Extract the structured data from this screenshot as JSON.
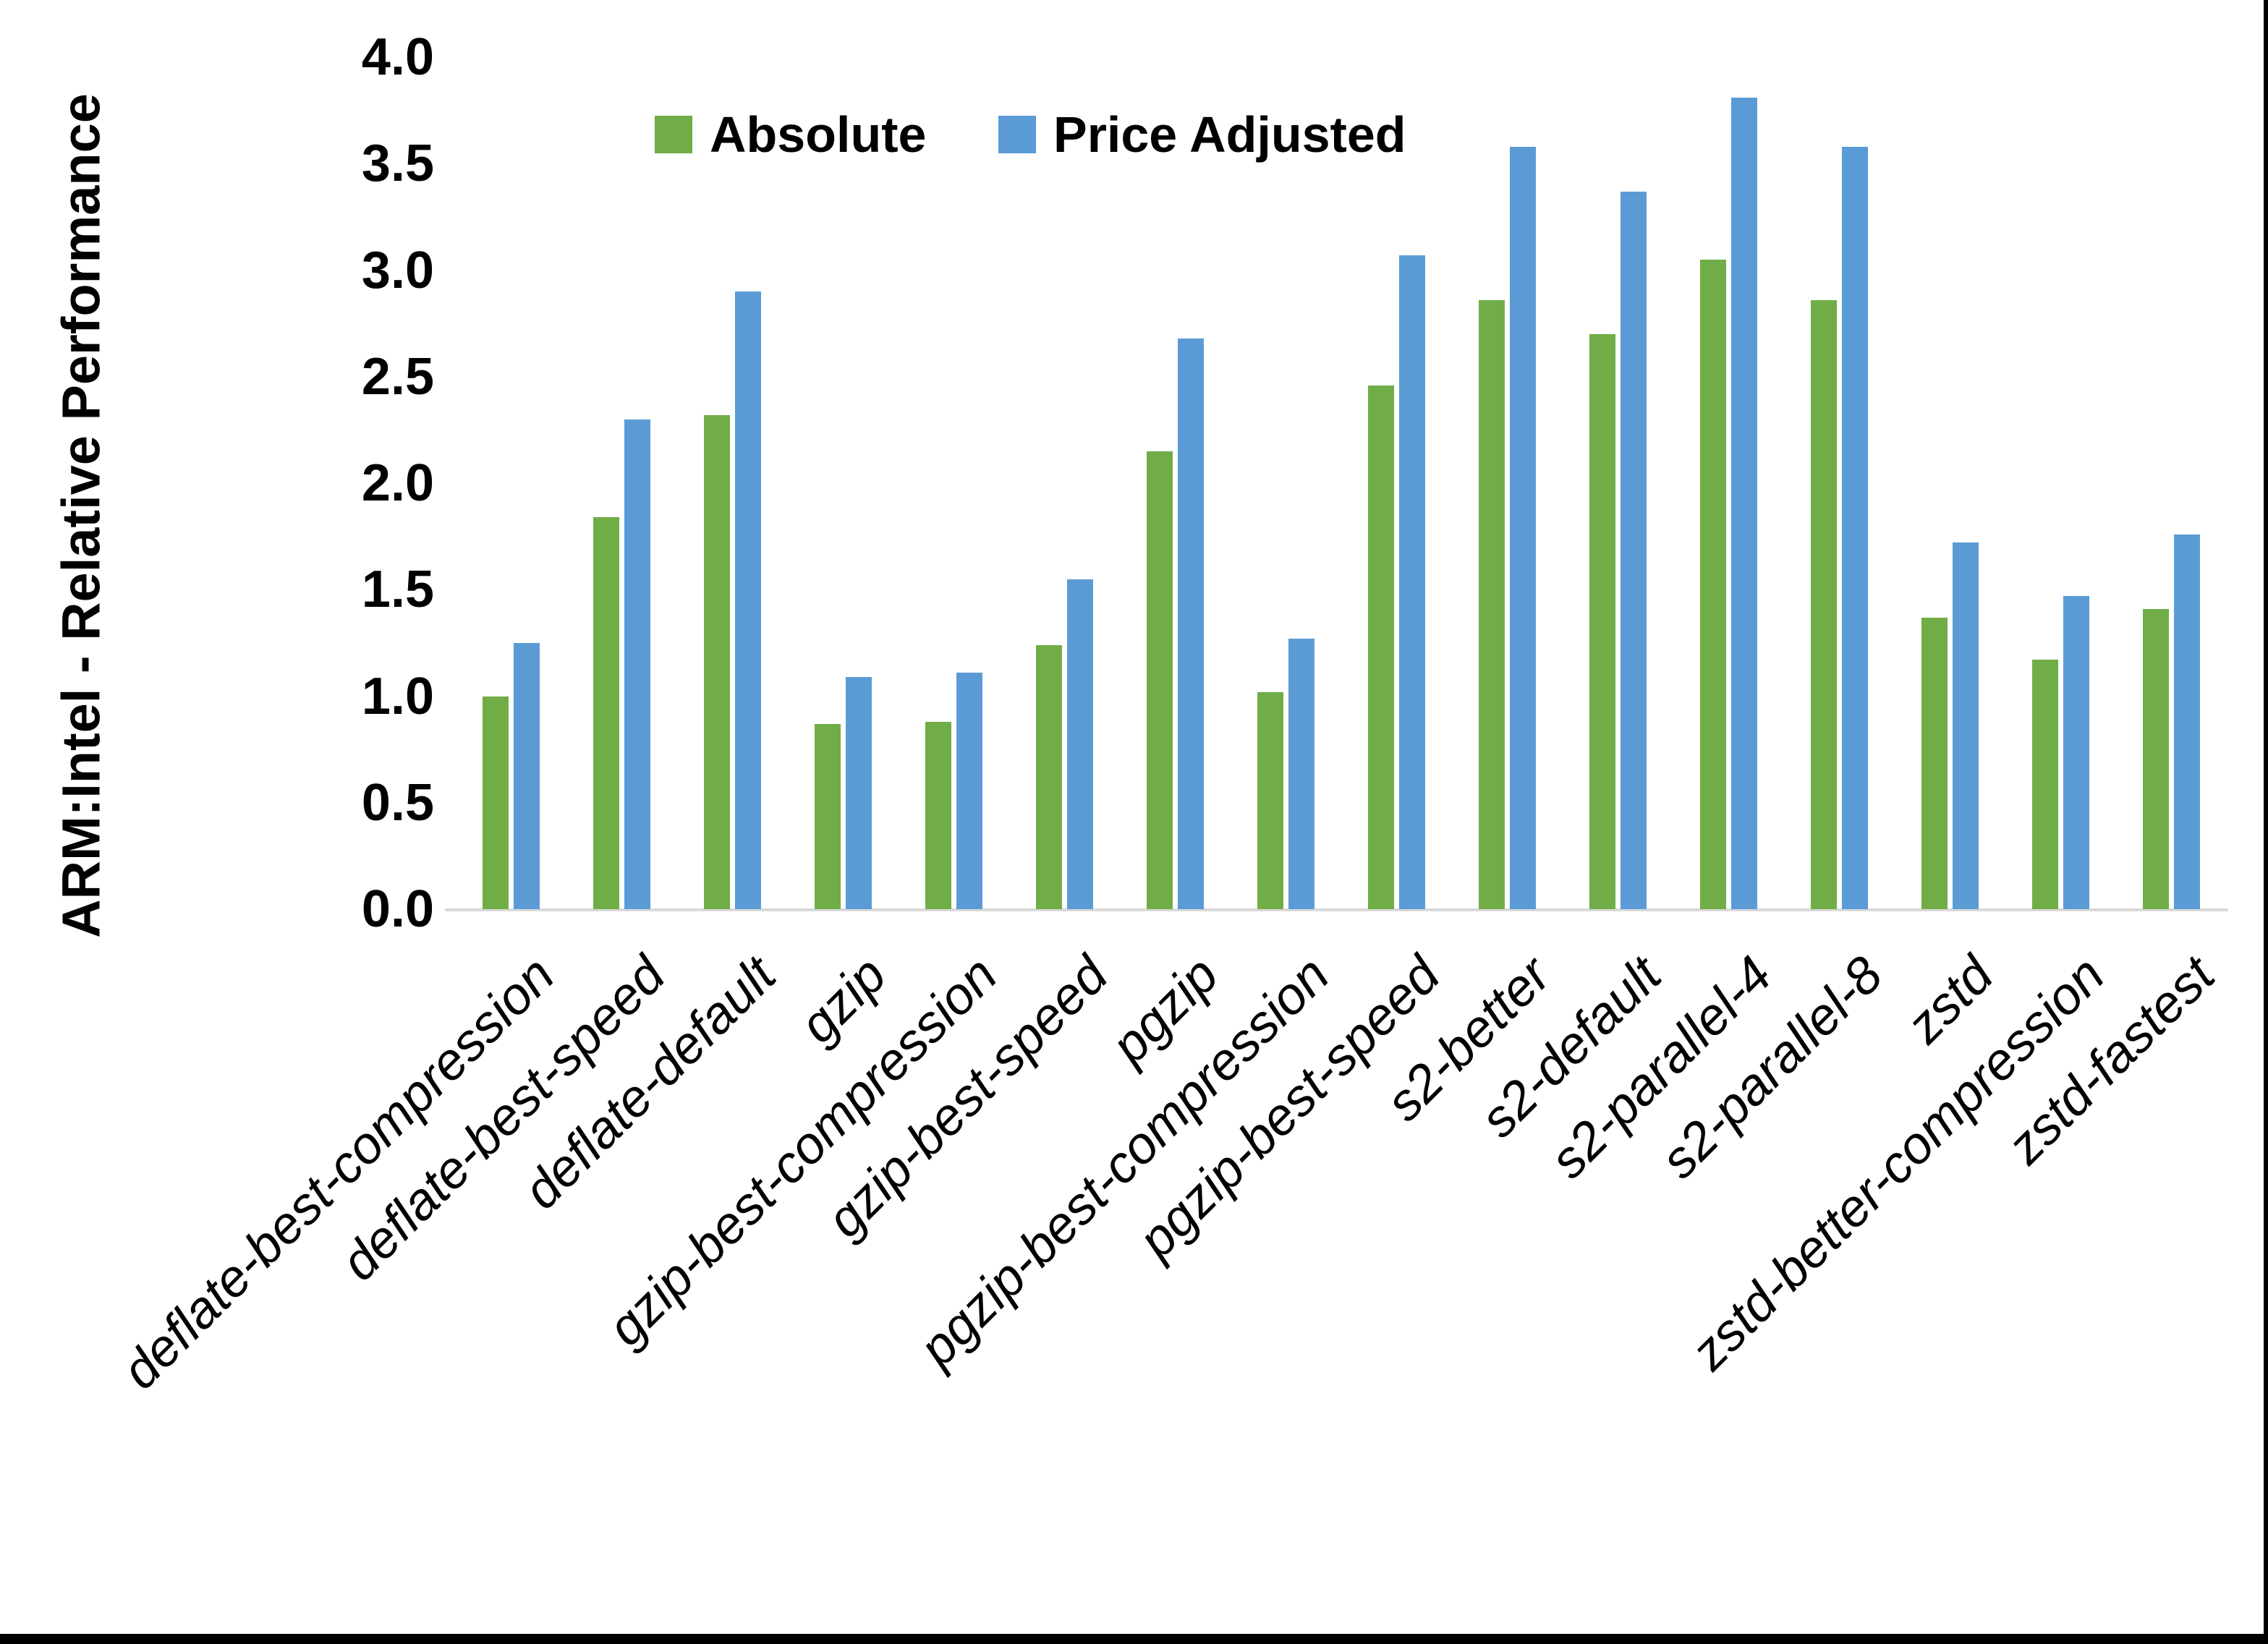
{
  "chart_data": {
    "type": "bar",
    "title": "",
    "ylabel": "ARM:Intel - Relative Performance",
    "xlabel": "",
    "ylim": [
      0.0,
      4.0
    ],
    "ytick_step": 0.5,
    "ytick_labels": [
      "0.0",
      "0.5",
      "1.0",
      "1.5",
      "2.0",
      "2.5",
      "3.0",
      "3.5",
      "4.0"
    ],
    "grid": false,
    "legend_position": "top-center",
    "categories": [
      "deflate-best-compression",
      "deflate-best-speed",
      "deflate-default",
      "gzip",
      "gzip-best-compression",
      "gzip-best-speed",
      "pgzip",
      "pgzip-best-compression",
      "pgzip-best-speed",
      "s2-better",
      "s2-default",
      "s2-parallel-4",
      "s2-parallel-8",
      "zstd",
      "zstd-better-compression",
      "zstd-fastest"
    ],
    "series": [
      {
        "name": "Absolute",
        "color": "#70AD47",
        "values": [
          1.0,
          1.84,
          2.32,
          0.87,
          0.88,
          1.24,
          2.15,
          1.02,
          2.46,
          2.86,
          2.7,
          3.05,
          2.86,
          1.37,
          1.17,
          1.41
        ]
      },
      {
        "name": "Price Adjusted",
        "color": "#5B9BD5",
        "values": [
          1.25,
          2.3,
          2.9,
          1.09,
          1.11,
          1.55,
          2.68,
          1.27,
          3.07,
          3.58,
          3.37,
          3.81,
          3.58,
          1.72,
          1.47,
          1.76
        ]
      }
    ]
  },
  "colors": {
    "background": "#FFFFFF",
    "axis_line": "#D9D9D9",
    "text": "#000000",
    "border": "#000000"
  }
}
